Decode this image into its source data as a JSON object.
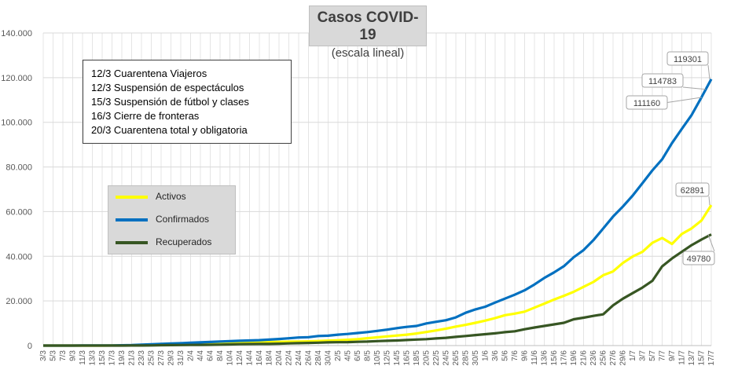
{
  "title": "Casos  COVID-19",
  "subtitle": "(escala lineal)",
  "notes": [
    "12/3 Cuarentena Viajeros",
    "12/3 Suspensión de espectáculos",
    "15/3 Suspensión de fútbol y clases",
    "16/3 Cierre de fronteras",
    "20/3 Cuarentena total y obligatoria"
  ],
  "chart_data": {
    "type": "line",
    "x_tick_labels": [
      "3/3",
      "5/3",
      "7/3",
      "9/3",
      "11/3",
      "13/3",
      "15/3",
      "17/3",
      "19/3",
      "21/3",
      "23/3",
      "25/3",
      "27/3",
      "29/3",
      "31/3",
      "2/4",
      "4/4",
      "6/4",
      "8/4",
      "10/4",
      "12/4",
      "14/4",
      "16/4",
      "18/4",
      "20/4",
      "22/4",
      "24/4",
      "26/4",
      "28/4",
      "30/4",
      "2/5",
      "4/5",
      "6/5",
      "8/5",
      "10/5",
      "12/5",
      "14/5",
      "16/5",
      "18/5",
      "20/5",
      "22/5",
      "24/5",
      "26/5",
      "28/5",
      "30/5",
      "1/6",
      "3/6",
      "5/6",
      "7/6",
      "9/6",
      "11/6",
      "13/6",
      "15/6",
      "17/6",
      "19/6",
      "21/6",
      "23/6",
      "25/6",
      "27/6",
      "29/6",
      "1/7",
      "3/7",
      "5/7",
      "7/7",
      "9/7",
      "11/7",
      "13/7",
      "15/7",
      "17/7"
    ],
    "ylim": [
      0,
      140000
    ],
    "y_ticks": [
      0,
      20000,
      40000,
      60000,
      80000,
      100000,
      120000,
      140000
    ],
    "y_tick_labels": [
      "0",
      "20.000",
      "40.000",
      "60.000",
      "80.000",
      "100.000",
      "120.000",
      "140.000"
    ],
    "grid": true,
    "legend_position": "left-center",
    "series": [
      {
        "name": "Activos",
        "color": "#ffff00",
        "values": [
          1,
          1,
          2,
          8,
          10,
          12,
          17,
          30,
          60,
          130,
          220,
          350,
          500,
          650,
          800,
          950,
          1100,
          1200,
          1300,
          1400,
          1450,
          1500,
          1550,
          1600,
          1700,
          1750,
          1800,
          1900,
          2050,
          2200,
          2400,
          2600,
          2900,
          3300,
          3700,
          4100,
          4500,
          4900,
          5400,
          6100,
          6800,
          7600,
          8500,
          9300,
          10200,
          11200,
          12300,
          13600,
          14300,
          15200,
          17000,
          18800,
          20600,
          22300,
          24100,
          26300,
          28500,
          31500,
          33200,
          37000,
          39900,
          42000,
          46000,
          48200,
          45500,
          50000,
          52500,
          56000,
          62891
        ]
      },
      {
        "name": "Confirmados",
        "color": "#0070c0",
        "values": [
          1,
          2,
          8,
          12,
          19,
          34,
          45,
          79,
          128,
          225,
          387,
          589,
          745,
          901,
          1054,
          1265,
          1451,
          1628,
          1795,
          1975,
          2142,
          2277,
          2443,
          2669,
          2941,
          3288,
          3607,
          3780,
          4285,
          4428,
          4887,
          5208,
          5611,
          6034,
          6563,
          7134,
          7805,
          8371,
          8809,
          9931,
          10649,
          11353,
          12628,
          14702,
          16214,
          17415,
          19268,
          21037,
          22794,
          24761,
          27373,
          30295,
          32785,
          35552,
          39570,
          42785,
          47216,
          52457,
          57744,
          62268,
          67197,
          72786,
          78434,
          83426,
          90693,
          97059,
          103265,
          111160,
          119301
        ]
      },
      {
        "name": "Recuperados",
        "color": "#375623",
        "values": [
          0,
          0,
          0,
          1,
          1,
          2,
          3,
          3,
          5,
          27,
          52,
          72,
          180,
          220,
          260,
          280,
          325,
          365,
          419,
          525,
          630,
          700,
          739,
          750,
          850,
          1000,
          1100,
          1200,
          1300,
          1450,
          1500,
          1550,
          1700,
          1800,
          2000,
          2150,
          2300,
          2500,
          2700,
          2900,
          3200,
          3500,
          3900,
          4300,
          4700,
          5100,
          5500,
          6000,
          6400,
          7300,
          8100,
          8800,
          9500,
          10200,
          11800,
          12500,
          13300,
          14000,
          18000,
          21000,
          23500,
          26000,
          29000,
          35500,
          39000,
          42000,
          45000,
          47500,
          49780
        ]
      }
    ],
    "annotations": [
      {
        "label": "119301",
        "series": "Confirmados"
      },
      {
        "label": "114783",
        "series": "Confirmados"
      },
      {
        "label": "111160",
        "series": "Confirmados"
      },
      {
        "label": "62891",
        "series": "Activos"
      },
      {
        "label": "49780",
        "series": "Recuperados"
      }
    ]
  }
}
